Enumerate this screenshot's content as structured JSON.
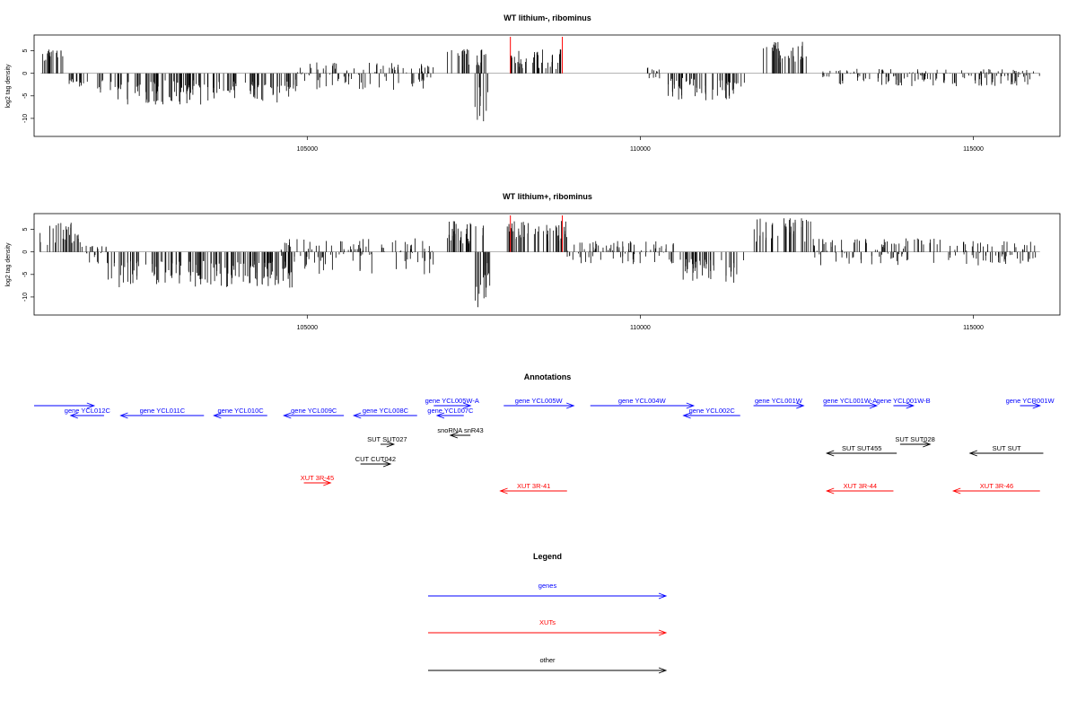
{
  "colors": {
    "gene": "#0000ff",
    "xut": "#ff0000",
    "other": "#000000",
    "marker": "#ff0000"
  },
  "chart_data": [
    {
      "type": "bar",
      "title": "WT lithium-, ribominus",
      "ylabel": "log2 tag density",
      "xlim": [
        100900,
        116300
      ],
      "ylim": [
        -14,
        8.5
      ],
      "yticks": [
        "5",
        "0",
        "-5",
        "-10"
      ],
      "xticks": [
        "105000",
        "110000",
        "115000"
      ],
      "markers": [
        108050,
        108830
      ],
      "regions": [
        {
          "x": [
            100990,
            101350
          ],
          "y": [
            2,
            5.5
          ]
        },
        {
          "x": [
            101400,
            101700
          ],
          "y": [
            -3,
            -1
          ]
        },
        {
          "x": [
            101800,
            104800
          ],
          "y": [
            -7,
            -1.5
          ]
        },
        {
          "x": [
            104800,
            106900
          ],
          "y": [
            -4,
            2.5
          ]
        },
        {
          "x": [
            107100,
            107450
          ],
          "y": [
            1,
            7
          ]
        },
        {
          "x": [
            107480,
            107700
          ],
          "y": [
            1,
            6
          ]
        },
        {
          "x": [
            107500,
            107720
          ],
          "y": [
            -12,
            -2
          ]
        },
        {
          "x": [
            108050,
            108830
          ],
          "y": [
            0.5,
            5.5
          ]
        },
        {
          "x": [
            110100,
            110300
          ],
          "y": [
            -2,
            1.5
          ]
        },
        {
          "x": [
            110400,
            111600
          ],
          "y": [
            -6,
            -1
          ]
        },
        {
          "x": [
            111800,
            112500
          ],
          "y": [
            1.5,
            7
          ]
        },
        {
          "x": [
            112700,
            116000
          ],
          "y": [
            -3,
            1
          ]
        }
      ]
    },
    {
      "type": "bar",
      "title": "WT lithium+, ribominus",
      "ylabel": "log2 tag density",
      "xlim": [
        100900,
        116300
      ],
      "ylim": [
        -14,
        8.5
      ],
      "yticks": [
        "5",
        "0",
        "-5",
        "-10"
      ],
      "xticks": [
        "105000",
        "110000",
        "115000"
      ],
      "markers": [
        108050,
        108830
      ],
      "regions": [
        {
          "x": [
            100990,
            101600
          ],
          "y": [
            1.5,
            6.5
          ]
        },
        {
          "x": [
            101600,
            102000
          ],
          "y": [
            -3,
            1.5
          ]
        },
        {
          "x": [
            102000,
            104800
          ],
          "y": [
            -8,
            -2
          ]
        },
        {
          "x": [
            104600,
            106900
          ],
          "y": [
            -5,
            3
          ]
        },
        {
          "x": [
            107100,
            107700
          ],
          "y": [
            1.5,
            7
          ]
        },
        {
          "x": [
            107500,
            107750
          ],
          "y": [
            -13,
            -2
          ]
        },
        {
          "x": [
            108000,
            108900
          ],
          "y": [
            2,
            7
          ]
        },
        {
          "x": [
            108900,
            110500
          ],
          "y": [
            -3,
            2.5
          ]
        },
        {
          "x": [
            110600,
            111600
          ],
          "y": [
            -7,
            -1.5
          ]
        },
        {
          "x": [
            111700,
            112600
          ],
          "y": [
            2,
            7.5
          ]
        },
        {
          "x": [
            112600,
            114500
          ],
          "y": [
            -3,
            3
          ]
        },
        {
          "x": [
            114600,
            116000
          ],
          "y": [
            -3,
            2.5
          ]
        }
      ]
    }
  ],
  "annotations": {
    "title": "Annotations",
    "features": [
      {
        "label": "",
        "kind": "gene",
        "x1": 100900,
        "x2": 101800,
        "dir": "+",
        "row": 0
      },
      {
        "label": "gene YCL012C",
        "kind": "gene",
        "x1": 101450,
        "x2": 101950,
        "dir": "-",
        "row": 1
      },
      {
        "label": "gene YCL011C",
        "kind": "gene",
        "x1": 102200,
        "x2": 103450,
        "dir": "-",
        "row": 1
      },
      {
        "label": "gene YCL010C",
        "kind": "gene",
        "x1": 103600,
        "x2": 104400,
        "dir": "-",
        "row": 1
      },
      {
        "label": "gene YCL009C",
        "kind": "gene",
        "x1": 104650,
        "x2": 105550,
        "dir": "-",
        "row": 1
      },
      {
        "label": "gene YCL008C",
        "kind": "gene",
        "x1": 105700,
        "x2": 106650,
        "dir": "-",
        "row": 1
      },
      {
        "label": "gene YCL005W-A",
        "kind": "gene",
        "x1": 106900,
        "x2": 107450,
        "dir": "+",
        "row": 0
      },
      {
        "label": "gene YCL007C",
        "kind": "gene",
        "x1": 106950,
        "x2": 107350,
        "dir": "-",
        "row": 1
      },
      {
        "label": "gene YCL005W",
        "kind": "gene",
        "x1": 107950,
        "x2": 109000,
        "dir": "+",
        "row": 0
      },
      {
        "label": "gene YCL004W",
        "kind": "gene",
        "x1": 109250,
        "x2": 110800,
        "dir": "+",
        "row": 0
      },
      {
        "label": "gene YCL002C",
        "kind": "gene",
        "x1": 110650,
        "x2": 111500,
        "dir": "-",
        "row": 1
      },
      {
        "label": "gene YCL001W",
        "kind": "gene",
        "x1": 111700,
        "x2": 112450,
        "dir": "+",
        "row": 0
      },
      {
        "label": "gene YCL001W-A",
        "kind": "gene",
        "x1": 112750,
        "x2": 113550,
        "dir": "+",
        "row": 0
      },
      {
        "label": "gene YCL001W-B",
        "kind": "gene",
        "x1": 113800,
        "x2": 114100,
        "dir": "+",
        "row": 0
      },
      {
        "label": "gene YCR001W",
        "kind": "gene",
        "x1": 115700,
        "x2": 116000,
        "dir": "+",
        "row": 0
      },
      {
        "label": "snoRNA snR43",
        "kind": "other",
        "x1": 107150,
        "x2": 107450,
        "dir": "-",
        "row": 2
      },
      {
        "label": "SUT SUT027",
        "kind": "other",
        "x1": 106100,
        "x2": 106300,
        "dir": "+",
        "row": 3
      },
      {
        "label": "SUT SUT028",
        "kind": "other",
        "x1": 113900,
        "x2": 114350,
        "dir": "+",
        "row": 3
      },
      {
        "label": "SUT SUT455",
        "kind": "other",
        "x1": 112800,
        "x2": 113850,
        "dir": "-",
        "row": 4
      },
      {
        "label": "SUT SUT",
        "kind": "other",
        "x1": 114950,
        "x2": 116050,
        "dir": "-",
        "row": 4
      },
      {
        "label": "CUT CUT042",
        "kind": "other",
        "x1": 105800,
        "x2": 106250,
        "dir": "+",
        "row": 5
      },
      {
        "label": "XUT 3R-45",
        "kind": "xut",
        "x1": 104950,
        "x2": 105350,
        "dir": "+",
        "row": 6
      },
      {
        "label": "XUT 3R-41",
        "kind": "xut",
        "x1": 107900,
        "x2": 108900,
        "dir": "-",
        "row": 7
      },
      {
        "label": "XUT 3R-44",
        "kind": "xut",
        "x1": 112800,
        "x2": 113800,
        "dir": "-",
        "row": 7
      },
      {
        "label": "XUT 3R-46",
        "kind": "xut",
        "x1": 114700,
        "x2": 116000,
        "dir": "-",
        "row": 7
      }
    ]
  },
  "legend": {
    "title": "Legend",
    "entries": [
      {
        "label": "genes",
        "kind": "gene"
      },
      {
        "label": "XUTs",
        "kind": "xut"
      },
      {
        "label": "other",
        "kind": "other"
      }
    ]
  }
}
